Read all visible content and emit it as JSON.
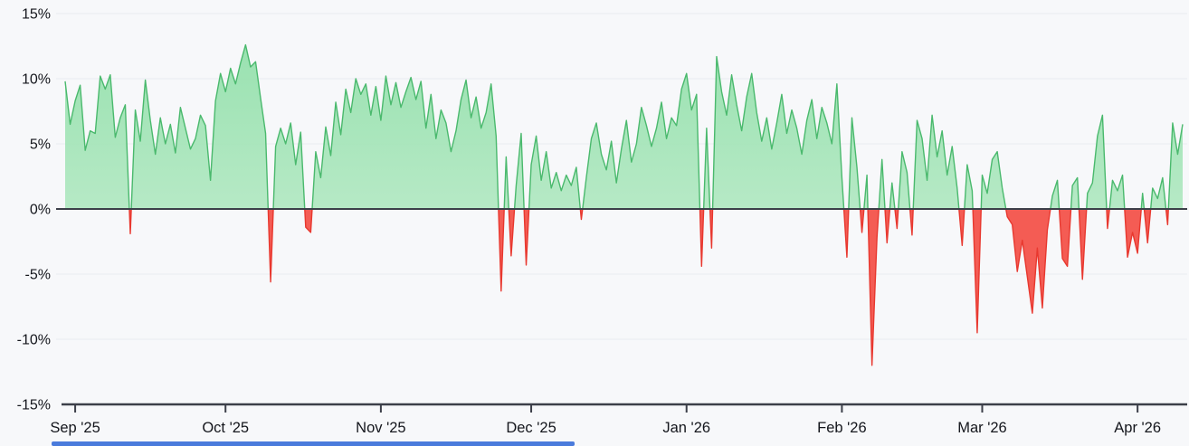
{
  "page": {
    "background": "#f7f8fa"
  },
  "chart_data": {
    "type": "area",
    "title": "",
    "xlabel": "",
    "ylabel": "",
    "ylim": [
      -15,
      15
    ],
    "grid": "horizontal",
    "legend": "none",
    "y_tick_labels": [
      "15%",
      "10%",
      "5%",
      "0%",
      "-5%",
      "-10%",
      "-15%"
    ],
    "y_tick_values": [
      15,
      10,
      5,
      0,
      -5,
      -10,
      -15
    ],
    "x_tick_labels": [
      "Sep '25",
      "Oct '25",
      "Nov '25",
      "Dec '25",
      "Jan '26",
      "Feb '26",
      "Mar '26",
      "Apr '26"
    ],
    "x_tick_indices": [
      2,
      32,
      63,
      93,
      124,
      155,
      183,
      214
    ],
    "colors": {
      "positive_line": "#4ab96d",
      "positive_fill_top": "#8fdfa8",
      "positive_fill_bottom": "#c9efd3",
      "negative_line": "#e8382f",
      "negative_fill": "#f4453c",
      "zero_line": "#3c3f49",
      "axis": "#3c3f49",
      "grid": "#e9ebf0",
      "text": "#14161c"
    },
    "values": [
      9.8,
      6.5,
      8.3,
      9.5,
      4.5,
      6.0,
      5.8,
      10.2,
      9.2,
      10.3,
      5.5,
      7.0,
      8.0,
      -1.9,
      7.6,
      5.2,
      9.9,
      6.8,
      4.2,
      7.0,
      5.0,
      6.5,
      4.3,
      7.8,
      6.2,
      4.6,
      5.4,
      7.2,
      6.4,
      2.2,
      8.3,
      10.4,
      9.0,
      10.8,
      9.6,
      11.2,
      12.6,
      10.9,
      11.3,
      8.5,
      5.8,
      -5.6,
      4.8,
      6.2,
      5.0,
      6.6,
      3.4,
      5.9,
      -1.4,
      -1.8,
      4.4,
      2.4,
      6.3,
      4.1,
      8.2,
      5.7,
      9.2,
      7.4,
      10.0,
      8.8,
      9.6,
      7.2,
      9.4,
      6.8,
      10.2,
      8.0,
      9.7,
      7.8,
      9.0,
      10.1,
      8.4,
      9.8,
      6.2,
      8.8,
      5.4,
      7.6,
      6.6,
      4.4,
      6.0,
      8.4,
      9.9,
      7.0,
      8.6,
      6.2,
      7.4,
      9.6,
      5.6,
      -6.3,
      4.0,
      -3.6,
      1.8,
      5.8,
      -4.3,
      3.4,
      5.6,
      2.2,
      4.4,
      1.6,
      2.8,
      1.4,
      2.6,
      1.8,
      3.2,
      -0.8,
      2.4,
      5.4,
      6.6,
      4.2,
      3.0,
      5.2,
      2.0,
      4.6,
      6.8,
      3.6,
      5.0,
      7.8,
      6.4,
      4.8,
      6.2,
      8.2,
      5.4,
      7.0,
      6.4,
      9.2,
      10.4,
      7.6,
      8.8,
      -4.4,
      6.2,
      -3.0,
      11.7,
      9.0,
      7.2,
      10.3,
      8.0,
      6.0,
      8.6,
      10.4,
      7.4,
      5.2,
      7.0,
      4.6,
      6.6,
      8.8,
      5.8,
      7.6,
      6.2,
      4.2,
      6.8,
      8.4,
      5.4,
      7.8,
      6.6,
      5.0,
      9.6,
      2.4,
      -3.7,
      7.0,
      3.2,
      -1.8,
      2.6,
      -12,
      -2.2,
      3.8,
      -2.6,
      2.0,
      -1.5,
      4.4,
      2.8,
      -2.0,
      6.8,
      5.4,
      2.2,
      7.2,
      4.0,
      6.0,
      2.6,
      4.8,
      1.6,
      -2.8,
      3.4,
      1.4,
      -9.5,
      2.6,
      1.2,
      3.8,
      4.4,
      1.6,
      -0.6,
      -1.2,
      -4.8,
      -2.4,
      -5.2,
      -8.0,
      -3.0,
      -7.6,
      -1.6,
      1.0,
      2.2,
      -3.8,
      -4.4,
      1.8,
      2.4,
      -5.4,
      1.2,
      2.0,
      5.6,
      7.2,
      -1.5,
      2.2,
      1.4,
      2.6,
      -3.7,
      -1.8,
      -3.4,
      1.2,
      -2.6,
      1.6,
      0.8,
      2.4,
      -1.2,
      6.6,
      4.2,
      6.5
    ]
  },
  "scrollbar": {
    "color": "#4a7bdc"
  }
}
